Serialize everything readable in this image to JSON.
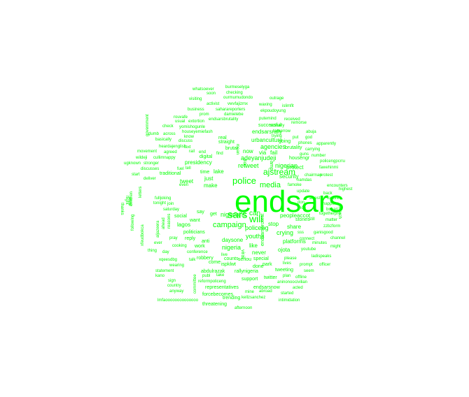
{
  "color": "#00ff00",
  "words": [
    {
      "text": "endsars",
      "weight": 44
    },
    {
      "text": "sars",
      "weight": 15
    },
    {
      "text": "will",
      "weight": 14
    },
    {
      "text": "police",
      "weight": 13
    },
    {
      "text": "ajstream",
      "weight": 12
    },
    {
      "text": "media",
      "weight": 11
    },
    {
      "text": "campaign",
      "weight": 11
    },
    {
      "text": "can",
      "weight": 10
    },
    {
      "text": "adeyanjudeji",
      "weight": 9
    },
    {
      "text": "nigerian",
      "weight": 9
    },
    {
      "text": "retweet",
      "weight": 9
    },
    {
      "text": "agencies",
      "weight": 9
    },
    {
      "text": "nigerians",
      "weight": 9
    },
    {
      "text": "policeng",
      "weight": 9
    },
    {
      "text": "youths",
      "weight": 9
    },
    {
      "text": "crying",
      "weight": 9
    },
    {
      "text": "nigeria",
      "weight": 9
    },
    {
      "text": "stop",
      "weight": 8
    },
    {
      "text": "peopleaccot",
      "weight": 8
    },
    {
      "text": "urbanculture",
      "weight": 8
    },
    {
      "text": "endsarsrally",
      "weight": 8
    },
    {
      "text": "presidency",
      "weight": 8
    },
    {
      "text": "tweet",
      "weight": 8
    },
    {
      "text": "make",
      "weight": 8
    },
    {
      "text": "just",
      "weight": 8
    },
    {
      "text": "lagos",
      "weight": 8
    },
    {
      "text": "now",
      "weight": 8
    },
    {
      "text": "via",
      "weight": 8
    },
    {
      "text": "fail",
      "weight": 8
    },
    {
      "text": "lake",
      "weight": 8
    },
    {
      "text": "security",
      "weight": 8
    },
    {
      "text": "protect",
      "weight": 8
    },
    {
      "text": "share",
      "weight": 8
    },
    {
      "text": "like",
      "weight": 8
    },
    {
      "text": "never",
      "weight": 8
    },
    {
      "text": "daysone",
      "weight": 8
    },
    {
      "text": "platforms",
      "weight": 8
    },
    {
      "text": "ojota",
      "weight": 8
    },
    {
      "text": "traditional",
      "weight": 7
    },
    {
      "text": "digital",
      "weight": 7
    },
    {
      "text": "brutal",
      "weight": 7
    },
    {
      "text": "straight",
      "weight": 7
    },
    {
      "text": "real",
      "weight": 7
    },
    {
      "text": "successful",
      "weight": 7
    },
    {
      "text": "housengr",
      "weight": 7
    },
    {
      "text": "stones",
      "weight": 7
    },
    {
      "text": "social",
      "weight": 7
    },
    {
      "text": "want",
      "weight": 7
    },
    {
      "text": "politicians",
      "weight": 7
    },
    {
      "text": "reply",
      "weight": 7
    },
    {
      "text": "work",
      "weight": 7
    },
    {
      "text": "anti",
      "weight": 7
    },
    {
      "text": "say",
      "weight": 7
    },
    {
      "text": "get",
      "weight": 7
    },
    {
      "text": "time",
      "weight": 7
    },
    {
      "text": "going",
      "weight": 7
    },
    {
      "text": "brutality",
      "weight": 7
    },
    {
      "text": "done",
      "weight": 7
    },
    {
      "text": "seriou",
      "weight": 7
    },
    {
      "text": "counts",
      "weight": 7
    },
    {
      "text": "come",
      "weight": 7
    },
    {
      "text": "ispklwt",
      "weight": 7
    },
    {
      "text": "robbery",
      "weight": 7
    },
    {
      "text": "rallynigeria",
      "weight": 7
    },
    {
      "text": "tweeting",
      "weight": 7
    },
    {
      "text": "special",
      "weight": 7
    },
    {
      "text": "park",
      "weight": 7
    },
    {
      "text": "support",
      "weight": 7
    },
    {
      "text": "twitter",
      "weight": 7
    },
    {
      "text": "abdulrazak",
      "weight": 7
    },
    {
      "text": "endsarsnow",
      "weight": 7
    },
    {
      "text": "representatives",
      "weight": 7
    },
    {
      "text": "forcebecomes",
      "weight": 7
    },
    {
      "text": "trending",
      "weight": 7
    },
    {
      "text": "threatening",
      "weight": 7
    },
    {
      "text": "afternoon",
      "weight": 6
    },
    {
      "text": "lmfaoooooooooooooo",
      "weight": 6
    },
    {
      "text": "burmeselyga",
      "weight": 6
    },
    {
      "text": "whatsoever",
      "weight": 6
    },
    {
      "text": "checking",
      "weight": 6
    },
    {
      "text": "soon",
      "weight": 6
    },
    {
      "text": "ourmumudondo",
      "weight": 6
    },
    {
      "text": "visiting",
      "weight": 6
    },
    {
      "text": "outrage",
      "weight": 6
    },
    {
      "text": "activist",
      "weight": 6
    },
    {
      "text": "vwvfajizmx",
      "weight": 6
    },
    {
      "text": "waxing",
      "weight": 6
    },
    {
      "text": "islimfit",
      "weight": 6
    },
    {
      "text": "business",
      "weight": 6
    },
    {
      "text": "saharareporters",
      "weight": 6
    },
    {
      "text": "ekpoudoyung",
      "weight": 6
    },
    {
      "text": "prom",
      "weight": 6
    },
    {
      "text": "damielebe",
      "weight": 6
    },
    {
      "text": "rouvafe",
      "weight": 6
    },
    {
      "text": "endsarsbrutality",
      "weight": 6
    },
    {
      "text": "putemind",
      "weight": 6
    },
    {
      "text": "usual",
      "weight": 6
    },
    {
      "text": "extortion",
      "weight": 6
    },
    {
      "text": "actually",
      "weight": 6
    },
    {
      "text": "received",
      "weight": 6
    },
    {
      "text": "remorse",
      "weight": 6
    },
    {
      "text": "yomishogunle",
      "weight": 6
    },
    {
      "text": "check",
      "weight": 6
    },
    {
      "text": "houseyemiefash",
      "weight": 6
    },
    {
      "text": "tomorrow",
      "weight": 6
    },
    {
      "text": "abuja",
      "weight": 6
    },
    {
      "text": "trying",
      "weight": 6
    },
    {
      "text": "put",
      "weight": 6
    },
    {
      "text": "god",
      "weight": 6
    },
    {
      "text": "dumb",
      "weight": 6
    },
    {
      "text": "across",
      "weight": 6
    },
    {
      "text": "know",
      "weight": 6
    },
    {
      "text": "phones",
      "weight": 6
    },
    {
      "text": "apparently",
      "weight": 6
    },
    {
      "text": "basically",
      "weight": 6
    },
    {
      "text": "discuss",
      "weight": 6
    },
    {
      "text": "heardajenglish",
      "weight": 6
    },
    {
      "text": "text",
      "weight": 6
    },
    {
      "text": "carrying",
      "weight": 6
    },
    {
      "text": "movement",
      "weight": 6
    },
    {
      "text": "agreed",
      "weight": 6
    },
    {
      "text": "rail",
      "weight": 6
    },
    {
      "text": "end",
      "weight": 6
    },
    {
      "text": "find",
      "weight": 6
    },
    {
      "text": "guns",
      "weight": 6
    },
    {
      "text": "number",
      "weight": 6
    },
    {
      "text": "wildeji",
      "weight": 6
    },
    {
      "text": "cullimnappy",
      "weight": 6
    },
    {
      "text": "policengpcrru",
      "weight": 6
    },
    {
      "text": "ugknown",
      "weight": 6
    },
    {
      "text": "stronger",
      "weight": 6
    },
    {
      "text": "discusses",
      "weight": 6
    },
    {
      "text": "fuel",
      "weight": 6
    },
    {
      "text": "tell",
      "weight": 6
    },
    {
      "text": "fawehinmi",
      "weight": 6
    },
    {
      "text": "start",
      "weight": 6
    },
    {
      "text": "chairman",
      "weight": 6
    },
    {
      "text": "protest",
      "weight": 6
    },
    {
      "text": "deliver",
      "weight": 6
    },
    {
      "text": "namdas",
      "weight": 6
    },
    {
      "text": "famoke",
      "weight": 6
    },
    {
      "text": "encounters",
      "weight": 6
    },
    {
      "text": "even",
      "weight": 6
    },
    {
      "text": "update",
      "weight": 6
    },
    {
      "text": "highest",
      "weight": 6
    },
    {
      "text": "back",
      "weight": 6
    },
    {
      "text": "arrest",
      "weight": 6
    },
    {
      "text": "torture",
      "weight": 6
    },
    {
      "text": "tonight",
      "weight": 6
    },
    {
      "text": "join",
      "weight": 6
    },
    {
      "text": "fulljoking",
      "weight": 6
    },
    {
      "text": "don",
      "weight": 6
    },
    {
      "text": "happens",
      "weight": 6
    },
    {
      "text": "saturday",
      "weight": 6
    },
    {
      "text": "hon",
      "weight": 6
    },
    {
      "text": "buhari",
      "weight": 6
    },
    {
      "text": "togetherpro",
      "weight": 6
    },
    {
      "text": "still",
      "weight": 6
    },
    {
      "text": "matter",
      "weight": 6
    },
    {
      "text": "zzbzform",
      "weight": 6
    },
    {
      "text": "pray",
      "weight": 6
    },
    {
      "text": "ever",
      "weight": 6
    },
    {
      "text": "cooking",
      "weight": 6
    },
    {
      "text": "conference",
      "weight": 6
    },
    {
      "text": "sss",
      "weight": 6
    },
    {
      "text": "ganisgood",
      "weight": 6
    },
    {
      "text": "connect",
      "weight": 6
    },
    {
      "text": "minutes",
      "weight": 6
    },
    {
      "text": "channel",
      "weight": 6
    },
    {
      "text": "might",
      "weight": 6
    },
    {
      "text": "youtube",
      "weight": 6
    },
    {
      "text": "thing",
      "weight": 6
    },
    {
      "text": "day",
      "weight": 6
    },
    {
      "text": "ladispeaks",
      "weight": 6
    },
    {
      "text": "please",
      "weight": 6
    },
    {
      "text": "xqeesdbg",
      "weight": 6
    },
    {
      "text": "talk",
      "weight": 6
    },
    {
      "text": "live",
      "weight": 6
    },
    {
      "text": "wearing",
      "weight": 6
    },
    {
      "text": "lives",
      "weight": 6
    },
    {
      "text": "prompt",
      "weight": 6
    },
    {
      "text": "officer",
      "weight": 6
    },
    {
      "text": "seem",
      "weight": 6
    },
    {
      "text": "statement",
      "weight": 6
    },
    {
      "text": "publ",
      "weight": 6
    },
    {
      "text": "take",
      "weight": 6
    },
    {
      "text": "kano",
      "weight": 6
    },
    {
      "text": "plan",
      "weight": 6
    },
    {
      "text": "offline",
      "weight": 6
    },
    {
      "text": "reformpoliceng",
      "weight": 6
    },
    {
      "text": "sign",
      "weight": 6
    },
    {
      "text": "country",
      "weight": 6
    },
    {
      "text": "aninonoo",
      "weight": 6
    },
    {
      "text": "civilian",
      "weight": 6
    },
    {
      "text": "anyway",
      "weight": 6
    },
    {
      "text": "acted",
      "weight": 6
    },
    {
      "text": "started",
      "weight": 6
    },
    {
      "text": "mine",
      "weight": 6
    },
    {
      "text": "abroad",
      "weight": 6
    },
    {
      "text": "kellzsanchez",
      "weight": 6
    },
    {
      "text": "intimidation",
      "weight": 6
    },
    {
      "text": "government",
      "weight": 6
    },
    {
      "text": "letters",
      "weight": 6
    },
    {
      "text": "ahead",
      "weight": 6
    },
    {
      "text": "flight",
      "weight": 6
    },
    {
      "text": "thanks",
      "weight": 6
    },
    {
      "text": "went",
      "weight": 6
    },
    {
      "text": "children",
      "weight": 6
    },
    {
      "text": "following",
      "weight": 6
    },
    {
      "text": "xfeudbokca",
      "weight": 6
    },
    {
      "text": "aljazeera",
      "weight": 6
    },
    {
      "text": "reasons",
      "weight": 6
    },
    {
      "text": "committee",
      "weight": 6
    },
    {
      "text": "search",
      "weight": 6
    },
    {
      "text": "endsarsprotest",
      "weight": 6
    },
    {
      "text": "amp",
      "weight": 6
    },
    {
      "text": "viral",
      "weight": 6
    },
    {
      "text": "mean",
      "weight": 6
    },
    {
      "text": "didn",
      "weight": 6
    }
  ]
}
